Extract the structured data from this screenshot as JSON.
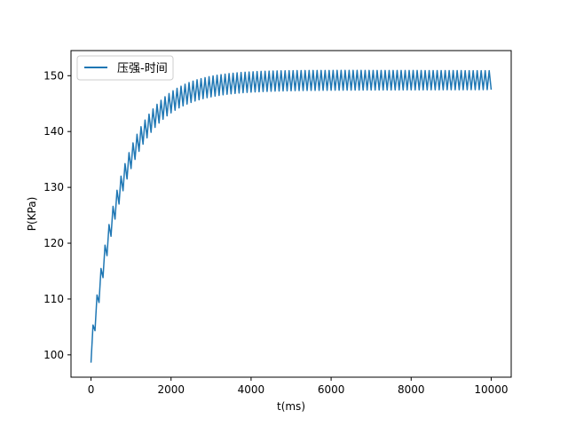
{
  "chart_data": {
    "type": "line",
    "title": "",
    "xlabel": "t(ms)",
    "ylabel": "P(KPa)",
    "xlim": [
      -500,
      10500
    ],
    "ylim": [
      96,
      154.5
    ],
    "xticks": [
      0,
      2000,
      4000,
      6000,
      8000,
      10000
    ],
    "xtick_labels": [
      "0",
      "2000",
      "4000",
      "6000",
      "8000",
      "10000"
    ],
    "yticks": [
      100,
      110,
      120,
      130,
      140,
      150
    ],
    "ytick_labels": [
      "100",
      "110",
      "120",
      "130",
      "140",
      "150"
    ],
    "grid": false,
    "legend_position": "upper-left",
    "color": "#1f77b4",
    "series": [
      {
        "name": "压强-时间",
        "x_range": [
          0,
          10000
        ],
        "mean_curve": {
          "start": 100.5,
          "plateau": 149.2,
          "time_constant_ms": 800
        },
        "oscillation": {
          "period_ms": 100,
          "amplitude_start": 1.9,
          "amplitude_end": 1.7
        }
      }
    ]
  }
}
